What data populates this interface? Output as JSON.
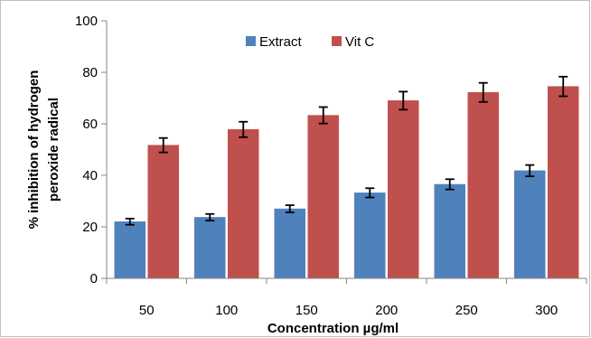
{
  "chart_data": {
    "type": "bar",
    "categories": [
      "50",
      "100",
      "150",
      "200",
      "250",
      "300"
    ],
    "series": [
      {
        "name": "Extract",
        "color": "#4f81bd",
        "values": [
          22,
          23.7,
          27,
          33.2,
          36.5,
          41.8
        ],
        "errors": [
          1.2,
          1.3,
          1.4,
          1.8,
          2.0,
          2.2
        ]
      },
      {
        "name": "Vit C",
        "color": "#c0504d",
        "values": [
          51.7,
          57.8,
          63.3,
          69,
          72.2,
          74.5
        ],
        "errors": [
          2.8,
          3.0,
          3.2,
          3.5,
          3.7,
          3.8
        ]
      }
    ],
    "xlabel": "Concentration µg/ml",
    "ylabel": [
      "% inhibition of hydrogen",
      "peroxide radical"
    ],
    "ylim": [
      0,
      100
    ],
    "yticks": [
      "0",
      "20",
      "40",
      "60",
      "80",
      "100"
    ],
    "grid": false,
    "legend_position": "top-center"
  }
}
